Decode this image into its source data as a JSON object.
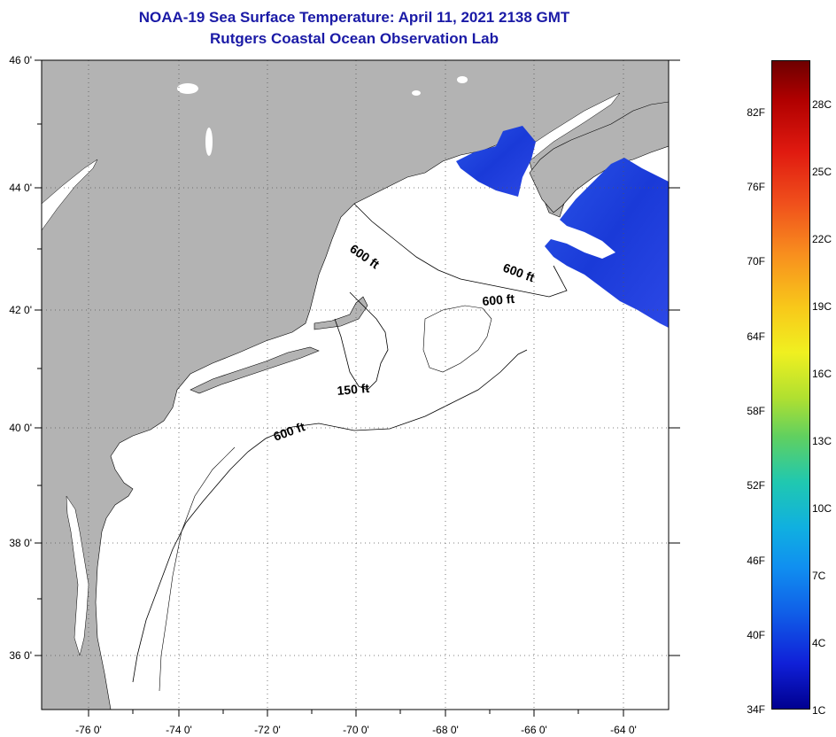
{
  "title": {
    "line1": "NOAA-19 Sea Surface Temperature:  April 11, 2021 2138 GMT",
    "line2": "Rutgers Coastal Ocean Observation Lab",
    "color": "#1a1aa6"
  },
  "map": {
    "land_color": "#b3b3b3",
    "ocean_color": "#ffffff",
    "lon_labels": [
      "-76 0'",
      "-74 0'",
      "-72 0'",
      "-70 0'",
      "-68 0'",
      "-66 0'",
      "-64 0'"
    ],
    "lat_labels": [
      "46 0'",
      "44 0'",
      "42 0'",
      "40 0'",
      "38 0'",
      "36 0'"
    ],
    "contour_labels": [
      {
        "text": "600 ft",
        "angle": 35
      },
      {
        "text": "600 ft",
        "angle": 20
      },
      {
        "text": "600 ft",
        "angle": -5
      },
      {
        "text": "150 ft",
        "angle": -5
      },
      {
        "text": "600 ft",
        "angle": -20
      }
    ]
  },
  "colorbar": {
    "f_labels": [
      "82F",
      "76F",
      "70F",
      "64F",
      "58F",
      "52F",
      "46F",
      "40F",
      "34F"
    ],
    "c_labels": [
      "28C",
      "25C",
      "22C",
      "19C",
      "16C",
      "13C",
      "10C",
      "7C",
      "4C",
      "1C"
    ]
  }
}
